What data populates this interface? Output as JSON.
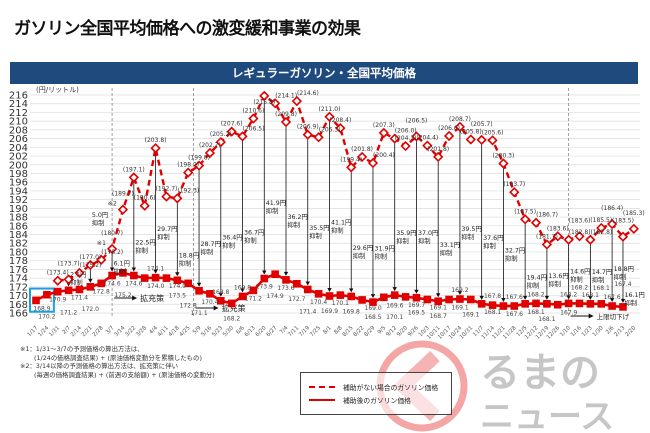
{
  "title": "ガソリン全国平均価格への激変緩和事業の効果",
  "header": "レギュラーガソリン・全国平均価格",
  "chart_data": {
    "type": "line",
    "title": "レギュラーガソリン・全国平均価格",
    "ylabel": "(円/リットル)",
    "ylim": [
      166,
      216
    ],
    "yticks": [
      166,
      168,
      170,
      172,
      174,
      176,
      178,
      180,
      182,
      184,
      186,
      188,
      190,
      192,
      194,
      196,
      198,
      200,
      202,
      204,
      206,
      208,
      210,
      212,
      214,
      216
    ],
    "grid": true,
    "legend_position": "bottom-right",
    "colors": {
      "series": "#e00000",
      "header": "#1f4a7e",
      "highlight_box": "#1ea0e0"
    },
    "x": [
      "1/17",
      "1/24",
      "1/31",
      "2/7",
      "2/14",
      "2/21",
      "2/28",
      "3/7",
      "3/14",
      "3/22",
      "3/28",
      "4/4",
      "4/11",
      "4/18",
      "4/25",
      "5/9",
      "5/16",
      "5/23",
      "5/30",
      "6/6",
      "6/13",
      "6/20",
      "6/27",
      "7/4",
      "7/11",
      "7/19",
      "7/25",
      "8/1",
      "8/8",
      "8/15",
      "8/22",
      "8/29",
      "9/5",
      "9/12",
      "9/20",
      "9/26",
      "10/3",
      "10/11",
      "10/17",
      "10/24",
      "10/31",
      "11/7",
      "11/14",
      "11/21",
      "11/28",
      "12/5",
      "12/12",
      "12/19",
      "12/26",
      "1/10",
      "1/16",
      "1/23",
      "1/30",
      "2/6",
      "2/13",
      "2/20"
    ],
    "series": [
      {
        "name": "補助がない場合のガソリン価格",
        "style": "dashed",
        "values": [
          null,
          null,
          173.4,
          173.7,
          175.2,
          177.0,
          178.2,
          180.7,
          189.7,
          197.1,
          190.6,
          203.8,
          192.7,
          192.3,
          198.2,
          199.8,
          202.7,
          205.2,
          207.6,
          206.5,
          210.6,
          215.8,
          214.1,
          209.8,
          214.6,
          206.9,
          206.3,
          211.0,
          208.4,
          199.4,
          201.8,
          200.4,
          207.3,
          206.0,
          204.3,
          206.5,
          204.4,
          201.8,
          206.6,
          208.7,
          205.8,
          205.7,
          205.6,
          200.3,
          193.7,
          187.5,
          186.7,
          181.7,
          183.6,
          182.8,
          183.6,
          182.8,
          185.5,
          186.4,
          183.5,
          185.3
        ]
      },
      {
        "name": "補助後のガソリン価格",
        "style": "solid",
        "values": [
          168.9,
          170.2,
          170.9,
          171.2,
          171.4,
          172.0,
          172.8,
          174.6,
          175.2,
          174.6,
          174.0,
          174.1,
          174.0,
          173.5,
          172.8,
          171.1,
          170.4,
          168.8,
          168.2,
          169.8,
          171.2,
          173.9,
          174.9,
          173.6,
          172.7,
          171.4,
          170.4,
          169.9,
          170.1,
          169.8,
          169.0,
          168.5,
          169.6,
          170.1,
          169.7,
          169.5,
          169.1,
          168.7,
          169.1,
          169.2,
          169.1,
          168.1,
          167.8,
          167.6,
          167.6,
          168.1,
          168.2,
          168.1,
          167.9,
          168.2,
          168.2,
          168.1,
          168.1,
          167.6,
          167.4,
          null
        ]
      }
    ],
    "suppression": [
      {
        "x": "2/7",
        "amount": "2.5円"
      },
      {
        "x": "2/21",
        "amount": "5.0円"
      },
      {
        "x": "3/7",
        "amount": "6.1円"
      },
      {
        "x": "3/22",
        "amount": "22.5円"
      },
      {
        "x": "4/4",
        "amount": "29.7円"
      },
      {
        "x": "4/18",
        "amount": "18.8円"
      },
      {
        "x": "5/9",
        "amount": "28.7円"
      },
      {
        "x": "5/23",
        "amount": "36.4円"
      },
      {
        "x": "6/6",
        "amount": "36.7円"
      },
      {
        "x": "6/20",
        "amount": "41.9円"
      },
      {
        "x": "7/4",
        "amount": "36.2円"
      },
      {
        "x": "7/19",
        "amount": "35.5円"
      },
      {
        "x": "8/1",
        "amount": "41.1円"
      },
      {
        "x": "8/15",
        "amount": "29.6円"
      },
      {
        "x": "8/29",
        "amount": "31.9円"
      },
      {
        "x": "9/12",
        "amount": "35.9円"
      },
      {
        "x": "9/26",
        "amount": "37.0円"
      },
      {
        "x": "10/11",
        "amount": "33.1円"
      },
      {
        "x": "10/24",
        "amount": "39.5円"
      },
      {
        "x": "11/7",
        "amount": "37.6円"
      },
      {
        "x": "11/21",
        "amount": "32.7円"
      },
      {
        "x": "12/5",
        "amount": "19.4円"
      },
      {
        "x": "12/19",
        "amount": "13.6円"
      },
      {
        "x": "1/10",
        "amount": "14.6円"
      },
      {
        "x": "1/23",
        "amount": "14.7円"
      },
      {
        "x": "2/6",
        "amount": "18.8円"
      },
      {
        "x": "2/13",
        "amount": "16.1円"
      }
    ],
    "suppression_word": "抑制",
    "annotations": [
      {
        "x": "3/7",
        "text": "※1"
      },
      {
        "x": "3/14",
        "text": "※2"
      }
    ],
    "phase_lines": [
      {
        "x": "3/7",
        "label": "拡充策"
      },
      {
        "x": "4/25",
        "label": "拡充策"
      },
      {
        "x": "1/10",
        "label": "上限切下げ"
      }
    ]
  },
  "notes": [
    "※1：1/31～3/7の予測価格の算出方法は、",
    "(1/24の価格調査結果) + (原油価格変動分を累積したもの)",
    "※2：3/14以降の予測価格の算出方法は、拡充策に伴い",
    "(毎週の価格調査結果) + (前週の支給額) + (原油価格の変動分)"
  ],
  "legend": {
    "dashed": "補助がない場合のガソリン価格",
    "solid": "補助後のガソリン価格"
  },
  "watermark": "くるまのニュース"
}
